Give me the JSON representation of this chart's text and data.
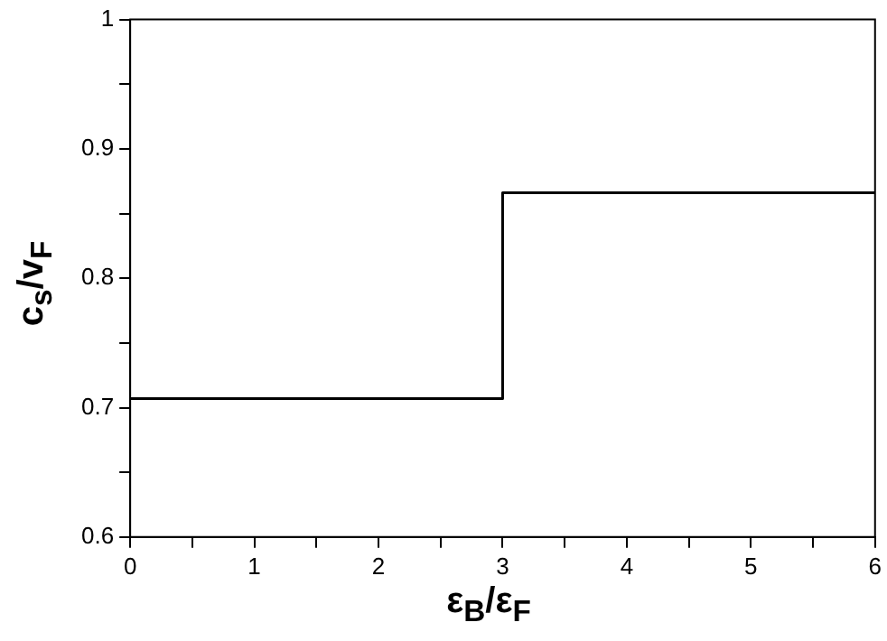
{
  "chart_data": {
    "type": "step",
    "xlabel": "ε$_{B}$/ε$_{F}$",
    "ylabel": "c$_{s}$/v$_{F}$",
    "x": [
      0,
      3,
      6
    ],
    "values": [
      0.707,
      0.866,
      0.866
    ],
    "color": "#000000",
    "marker": "none",
    "xlim": [
      0,
      6
    ],
    "ylim": [
      0.6,
      1
    ],
    "xticks": [
      0,
      {
        "value": 0.5,
        "label": null
      },
      1,
      {
        "value": 1.5,
        "label": null
      },
      2,
      {
        "value": 2.5,
        "label": null
      },
      3,
      {
        "value": 3.5,
        "label": null
      },
      4,
      {
        "value": 4.5,
        "label": null
      },
      5,
      {
        "value": 5.5,
        "label": null
      },
      6
    ],
    "yticks": [
      0.6,
      {
        "value": 0.65,
        "label": null
      },
      0.7,
      {
        "value": 0.75,
        "label": null
      },
      0.8,
      {
        "value": 0.85,
        "label": null
      },
      0.9,
      {
        "value": 0.95,
        "label": null
      },
      1
    ]
  }
}
